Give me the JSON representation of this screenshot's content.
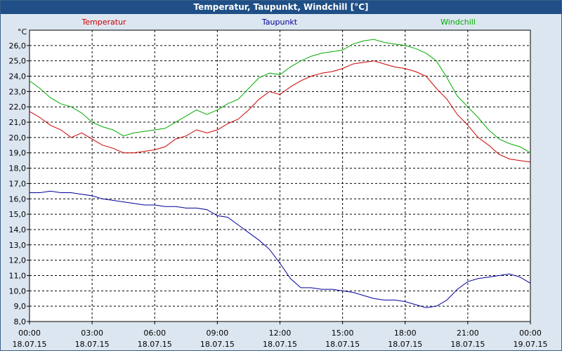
{
  "window": {
    "title": "Temperatur, Taupunkt, Windchill [°C]"
  },
  "chart_data": {
    "type": "line",
    "title": "Temperatur, Taupunkt, Windchill [°C]",
    "unit": "°C",
    "ylim": [
      8.0,
      27.0
    ],
    "yticks": [
      "8,0",
      "9,0",
      "10,0",
      "11,0",
      "12,0",
      "13,0",
      "14,0",
      "15,0",
      "16,0",
      "17,0",
      "18,0",
      "19,0",
      "20,0",
      "21,0",
      "22,0",
      "23,0",
      "24,0",
      "25,0",
      "26,0"
    ],
    "x_range_hours": [
      0,
      24
    ],
    "xticks": [
      {
        "time": "00:00",
        "date": "18.07.15",
        "hour": 0
      },
      {
        "time": "03:00",
        "date": "18.07.15",
        "hour": 3
      },
      {
        "time": "06:00",
        "date": "18.07.15",
        "hour": 6
      },
      {
        "time": "09:00",
        "date": "18.07.15",
        "hour": 9
      },
      {
        "time": "12:00",
        "date": "18.07.15",
        "hour": 12
      },
      {
        "time": "15:00",
        "date": "18.07.15",
        "hour": 15
      },
      {
        "time": "18:00",
        "date": "18.07.15",
        "hour": 18
      },
      {
        "time": "21:00",
        "date": "18.07.15",
        "hour": 21
      },
      {
        "time": "00:00",
        "date": "19.07.15",
        "hour": 24
      }
    ],
    "grid": true,
    "series": [
      {
        "name": "Temperatur",
        "color": "#cc0000",
        "x": [
          0,
          0.5,
          1,
          1.5,
          2,
          2.5,
          3,
          3.5,
          4,
          4.5,
          5,
          5.5,
          6,
          6.5,
          7,
          7.5,
          8,
          8.5,
          9,
          9.5,
          10,
          10.5,
          11,
          11.5,
          12,
          12.5,
          13,
          13.5,
          14,
          14.5,
          15,
          15.5,
          16,
          16.5,
          17,
          17.5,
          18,
          18.5,
          19,
          19.5,
          20,
          20.5,
          21,
          21.5,
          22,
          22.5,
          23,
          23.5,
          24
        ],
        "values": [
          21.7,
          21.3,
          20.8,
          20.5,
          20.0,
          20.3,
          19.9,
          19.5,
          19.3,
          19.0,
          19.0,
          19.1,
          19.2,
          19.4,
          19.9,
          20.1,
          20.5,
          20.3,
          20.5,
          20.9,
          21.2,
          21.8,
          22.5,
          23.0,
          22.8,
          23.3,
          23.7,
          24.0,
          24.2,
          24.3,
          24.5,
          24.8,
          24.9,
          25.0,
          24.8,
          24.6,
          24.5,
          24.3,
          24.0,
          23.2,
          22.5,
          21.5,
          20.8,
          20.0,
          19.5,
          18.9,
          18.6,
          18.5,
          18.4
        ]
      },
      {
        "name": "Taupunkt",
        "color": "#000099",
        "x": [
          0,
          0.5,
          1,
          1.5,
          2,
          2.5,
          3,
          3.5,
          4,
          4.5,
          5,
          5.5,
          6,
          6.5,
          7,
          7.5,
          8,
          8.5,
          9,
          9.5,
          10,
          10.5,
          11,
          11.5,
          12,
          12.5,
          13,
          13.5,
          14,
          14.5,
          15,
          15.5,
          16,
          16.5,
          17,
          17.5,
          18,
          18.5,
          19,
          19.5,
          20,
          20.5,
          21,
          21.5,
          22,
          22.5,
          23,
          23.5,
          24
        ],
        "values": [
          16.4,
          16.4,
          16.5,
          16.4,
          16.4,
          16.3,
          16.2,
          16.0,
          15.9,
          15.8,
          15.7,
          15.6,
          15.6,
          15.5,
          15.5,
          15.4,
          15.4,
          15.3,
          14.9,
          14.8,
          14.3,
          13.8,
          13.3,
          12.7,
          11.8,
          10.8,
          10.2,
          10.2,
          10.1,
          10.1,
          10.0,
          9.9,
          9.7,
          9.5,
          9.4,
          9.4,
          9.3,
          9.1,
          8.9,
          9.0,
          9.4,
          10.1,
          10.6,
          10.8,
          10.9,
          11.0,
          11.1,
          10.9,
          10.5
        ]
      },
      {
        "name": "Windchill",
        "color": "#00aa00",
        "x": [
          0,
          0.5,
          1,
          1.5,
          2,
          2.5,
          3,
          3.5,
          4,
          4.5,
          5,
          5.5,
          6,
          6.5,
          7,
          7.5,
          8,
          8.5,
          9,
          9.5,
          10,
          10.5,
          11,
          11.5,
          12,
          12.5,
          13,
          13.5,
          14,
          14.5,
          15,
          15.5,
          16,
          16.5,
          17,
          17.5,
          18,
          18.5,
          19,
          19.5,
          20,
          20.5,
          21,
          21.5,
          22,
          22.5,
          23,
          23.5,
          24
        ],
        "values": [
          23.7,
          23.2,
          22.6,
          22.2,
          22.0,
          21.6,
          21.0,
          20.7,
          20.5,
          20.1,
          20.3,
          20.4,
          20.5,
          20.6,
          21.0,
          21.4,
          21.8,
          21.5,
          21.8,
          22.2,
          22.5,
          23.2,
          23.9,
          24.2,
          24.1,
          24.6,
          25.0,
          25.3,
          25.5,
          25.6,
          25.7,
          26.1,
          26.3,
          26.4,
          26.2,
          26.1,
          26.0,
          25.8,
          25.5,
          25.0,
          23.9,
          22.7,
          22.0,
          21.3,
          20.5,
          19.9,
          19.6,
          19.4,
          19.0
        ]
      }
    ]
  }
}
